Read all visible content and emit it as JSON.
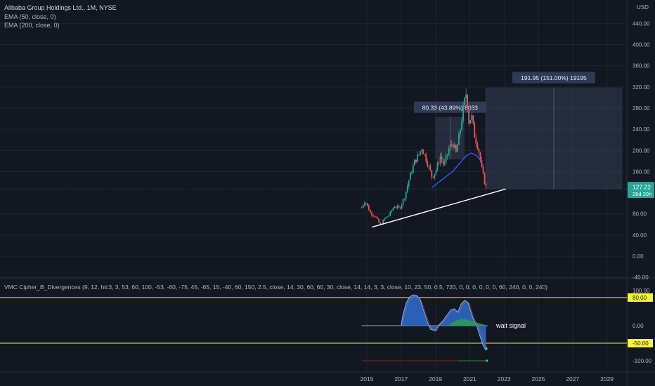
{
  "header": {
    "title": "Alibaba Group Holdings Ltd., 1M, NYSE",
    "indicators": [
      "EMA (50, close, 0)",
      "EMA (200, close, 0)"
    ],
    "currency": "USD"
  },
  "price_axis": {
    "ticks": [
      "440.00",
      "400.00",
      "360.00",
      "320.00",
      "280.00",
      "240.00",
      "200.00",
      "160.00",
      "80.00",
      "40.00",
      "0.00",
      "-40.00"
    ],
    "last_price": "127.22",
    "countdown": "26d 20h"
  },
  "time_axis": {
    "ticks": [
      "2015",
      "2017",
      "2019",
      "2021",
      "2023",
      "2025",
      "2027",
      "2029"
    ]
  },
  "annotations": {
    "measure1": "80.33 (43.89%) 8033",
    "measure2": "191.95 (151.00%) 19195",
    "wait_signal": "wait signal"
  },
  "oscillator": {
    "title": "VMC Cipher_B_Divergences (9, 12, hlc3, 3, 53, 60, 100, -53, -60, -75, 45, -65, 15, -40, 60, 150, 2.5, close, 14, 30, 60, 60, 30, close, 14, 14, 3, 3, close, 10, 23, 50, 0.5, 720, 0, 0, 0, 0, 0, 0, 60, 240, 0, 0, 240)",
    "ticks": [
      "100.00",
      "0.00",
      "-100.00"
    ],
    "levels": [
      "80.00",
      "-50.00"
    ]
  },
  "colors": {
    "up": "#26a69a",
    "down": "#ef5350",
    "ema": "#2962ff",
    "level": "#f5f53a",
    "wave": "#2e6dd0",
    "box": "#3a4660"
  },
  "chart_data": [
    {
      "type": "candlestick",
      "title": "Alibaba Group Holdings Ltd., 1M, NYSE",
      "x_unit": "year",
      "y_unit": "USD",
      "ylim": [
        -40,
        440
      ],
      "xlim": [
        2014.5,
        2030
      ],
      "ohlc_path": [
        [
          2014.7,
          92
        ],
        [
          2014.9,
          105
        ],
        [
          2015.2,
          82
        ],
        [
          2015.5,
          75
        ],
        [
          2015.8,
          58
        ],
        [
          2016.0,
          70
        ],
        [
          2016.3,
          78
        ],
        [
          2016.6,
          95
        ],
        [
          2016.9,
          90
        ],
        [
          2017.2,
          112
        ],
        [
          2017.5,
          150
        ],
        [
          2017.8,
          180
        ],
        [
          2018.0,
          190
        ],
        [
          2018.2,
          205
        ],
        [
          2018.5,
          180
        ],
        [
          2018.8,
          150
        ],
        [
          2019.0,
          160
        ],
        [
          2019.3,
          190
        ],
        [
          2019.5,
          170
        ],
        [
          2019.8,
          205
        ],
        [
          2020.0,
          215
        ],
        [
          2020.2,
          195
        ],
        [
          2020.4,
          230
        ],
        [
          2020.6,
          275
        ],
        [
          2020.8,
          310
        ],
        [
          2020.95,
          255
        ],
        [
          2021.1,
          265
        ],
        [
          2021.3,
          225
        ],
        [
          2021.5,
          205
        ],
        [
          2021.7,
          165
        ],
        [
          2021.9,
          135
        ],
        [
          2022.0,
          127
        ]
      ],
      "ema50": [
        [
          2018.8,
          130
        ],
        [
          2019.2,
          140
        ],
        [
          2019.6,
          150
        ],
        [
          2020.0,
          160
        ],
        [
          2020.4,
          175
        ],
        [
          2020.8,
          190
        ],
        [
          2021.1,
          195
        ],
        [
          2021.4,
          190
        ],
        [
          2021.7,
          178
        ]
      ],
      "trendline": [
        [
          2015.3,
          55
        ],
        [
          2023.1,
          127
        ]
      ],
      "last_price": 127.22,
      "measure_boxes": [
        {
          "label": "80.33 (43.89%) 8033",
          "x": [
            2019.0,
            2020.7
          ],
          "y": [
            183,
            263
          ]
        },
        {
          "label": "191.95 (151.00%) 19195",
          "x": [
            2021.9,
            2029.9
          ],
          "y": [
            127,
            319
          ]
        }
      ]
    },
    {
      "type": "area",
      "title": "VMC Cipher_B_Divergences",
      "ylim": [
        -125,
        125
      ],
      "levels": [
        80,
        -50
      ],
      "wave": [
        [
          2017.0,
          0
        ],
        [
          2017.1,
          30
        ],
        [
          2017.3,
          65
        ],
        [
          2017.5,
          82
        ],
        [
          2017.7,
          88
        ],
        [
          2017.9,
          86
        ],
        [
          2018.1,
          75
        ],
        [
          2018.3,
          45
        ],
        [
          2018.5,
          15
        ],
        [
          2018.7,
          -10
        ],
        [
          2019.0,
          -15
        ],
        [
          2019.2,
          2
        ],
        [
          2019.4,
          12
        ],
        [
          2019.6,
          25
        ],
        [
          2019.9,
          45
        ],
        [
          2020.1,
          48
        ],
        [
          2020.3,
          38
        ],
        [
          2020.5,
          62
        ],
        [
          2020.7,
          72
        ],
        [
          2020.9,
          66
        ],
        [
          2021.0,
          50
        ],
        [
          2021.2,
          20
        ],
        [
          2021.4,
          0
        ],
        [
          2021.6,
          -30
        ],
        [
          2021.8,
          -60
        ],
        [
          2021.95,
          -66
        ]
      ],
      "money_flow": [
        [
          2019.8,
          2
        ],
        [
          2020.1,
          12
        ],
        [
          2020.5,
          20
        ],
        [
          2020.8,
          18
        ],
        [
          2021.2,
          12
        ],
        [
          2021.6,
          6
        ],
        [
          2021.9,
          2
        ]
      ]
    }
  ]
}
